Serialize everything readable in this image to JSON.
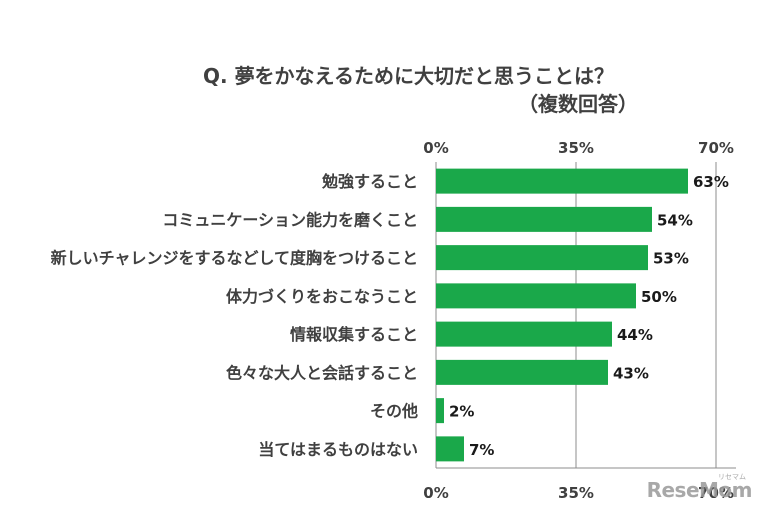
{
  "chart_data": {
    "type": "bar",
    "orientation": "horizontal",
    "title": "Q. 夢をかなえるために大切だと思うことは？",
    "subtitle": "（複数回答）",
    "categories": [
      "勉強すること",
      "コミュニケーション能力を磨くこと",
      "新しいチャレンジをするなどして度胸をつけること",
      "体力づくりをおこなうこと",
      "情報収集すること",
      "色々な大人と会話すること",
      "その他",
      "当てはまるものはない"
    ],
    "values": [
      63,
      54,
      53,
      50,
      44,
      43,
      2,
      7
    ],
    "value_labels": [
      "63%",
      "54%",
      "53%",
      "50%",
      "44%",
      "43%",
      "2%",
      "7%"
    ],
    "xlim": [
      0,
      70
    ],
    "x_ticks": [
      "0%",
      "35%",
      "70%"
    ],
    "x_tick_values": [
      0,
      35,
      70
    ],
    "grid": true,
    "bar_color": "#1aa84a"
  },
  "watermark": {
    "text": "ReseMom",
    "sub": "リセマム"
  }
}
